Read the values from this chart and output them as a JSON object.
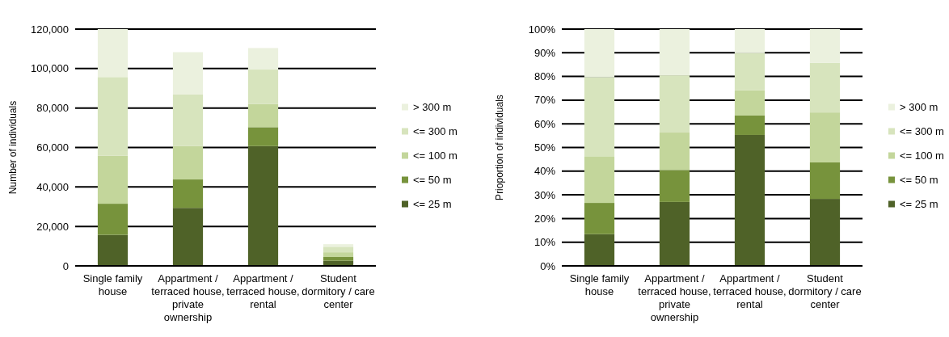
{
  "chart_data": [
    {
      "type": "bar",
      "stacked": true,
      "categories": [
        "Single family house",
        "Appartment / terraced house, private ownership",
        "Appartment / terraced house, rental",
        "Student dormitory / care center"
      ],
      "ylabel": "Number of individuals",
      "ylim": [
        0,
        120000
      ],
      "yticks": [
        {
          "value": 0,
          "label": "0"
        },
        {
          "value": 20000,
          "label": "20,000"
        },
        {
          "value": 40000,
          "label": "40,000"
        },
        {
          "value": 60000,
          "label": "60,000"
        },
        {
          "value": 80000,
          "label": "80,000"
        },
        {
          "value": 100000,
          "label": "100,000"
        },
        {
          "value": 120000,
          "label": "120,000"
        }
      ],
      "grid": "y",
      "legend": "right",
      "series": [
        {
          "name": "<= 25 m",
          "color": "#4f6228",
          "values": [
            15700,
            29400,
            60700,
            2600
          ]
        },
        {
          "name": "<= 50 m",
          "color": "#77933c",
          "values": [
            15800,
            14400,
            9600,
            1900
          ]
        },
        {
          "name": "<= 100 m",
          "color": "#c3d69b",
          "values": [
            24300,
            16900,
            11700,
            2400
          ]
        },
        {
          "name": "<= 300 m",
          "color": "#d7e4bd",
          "values": [
            39900,
            26200,
            17500,
            2800
          ]
        },
        {
          "name": "> 300 m",
          "color": "#ebf1de",
          "values": [
            24300,
            21400,
            10900,
            1300
          ]
        }
      ]
    },
    {
      "type": "bar",
      "stacked": true,
      "categories": [
        "Single family house",
        "Appartment / terraced house, private ownership",
        "Appartment / terraced house, rental",
        "Student dormitory / care center"
      ],
      "ylabel": "Prioportion of individuals",
      "ylim": [
        0,
        100
      ],
      "yticks": [
        {
          "value": 0,
          "label": "0%"
        },
        {
          "value": 10,
          "label": "10%"
        },
        {
          "value": 20,
          "label": "20%"
        },
        {
          "value": 30,
          "label": "30%"
        },
        {
          "value": 40,
          "label": "40%"
        },
        {
          "value": 50,
          "label": "50%"
        },
        {
          "value": 60,
          "label": "60%"
        },
        {
          "value": 70,
          "label": "70%"
        },
        {
          "value": 80,
          "label": "80%"
        },
        {
          "value": 90,
          "label": "90%"
        },
        {
          "value": 100,
          "label": "100%"
        }
      ],
      "grid": "y",
      "legend": "right",
      "series": [
        {
          "name": "<= 25 m",
          "color": "#4f6228",
          "values": [
            13.4,
            27.0,
            55.3,
            28.3
          ]
        },
        {
          "name": "<= 50 m",
          "color": "#77933c",
          "values": [
            13.2,
            13.5,
            8.2,
            15.4
          ]
        },
        {
          "name": "<= 100 m",
          "color": "#c3d69b",
          "values": [
            19.7,
            15.8,
            10.7,
            21.1
          ]
        },
        {
          "name": "<= 300 m",
          "color": "#d7e4bd",
          "values": [
            33.4,
            24.2,
            15.6,
            21.0
          ]
        },
        {
          "name": "> 300 m",
          "color": "#ebf1de",
          "values": [
            20.3,
            19.5,
            10.2,
            14.2
          ]
        }
      ]
    }
  ]
}
